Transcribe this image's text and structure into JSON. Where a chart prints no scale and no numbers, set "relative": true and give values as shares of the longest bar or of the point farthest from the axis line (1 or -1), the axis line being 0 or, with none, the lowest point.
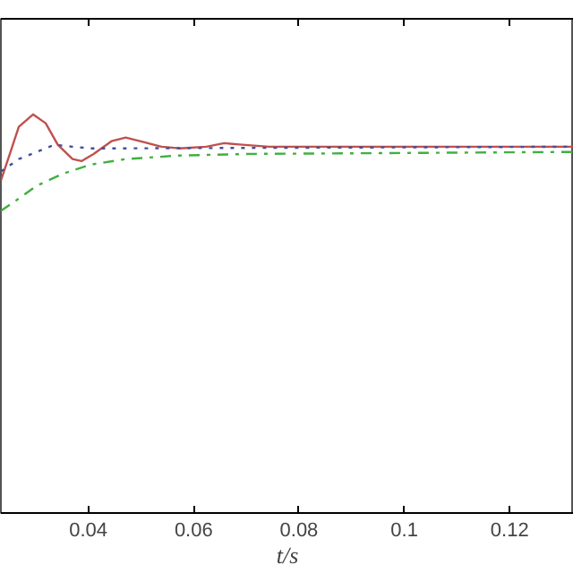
{
  "chart_data": {
    "type": "line",
    "relative": true,
    "xlabel": "t/s",
    "xlim": [
      0.0234,
      0.1322
    ],
    "xticks": [
      0.04,
      0.06,
      0.08,
      {
        "value": 0.1,
        "label": "0.1"
      },
      0.12
    ],
    "grid": false,
    "series": [
      {
        "color": "#c0504d",
        "line_style": "solid",
        "x": [
          0.0234,
          0.0251,
          0.0268,
          0.0295,
          0.0319,
          0.0342,
          0.037,
          0.0387,
          0.041,
          0.0444,
          0.0471,
          0.0498,
          0.0539,
          0.0573,
          0.0624,
          0.0658,
          0.0692,
          0.0743,
          0.1322
        ],
        "values": [
          0.834,
          0.901,
          0.969,
          1.0,
          0.978,
          0.924,
          0.888,
          0.883,
          0.901,
          0.933,
          0.942,
          0.933,
          0.919,
          0.915,
          0.919,
          0.928,
          0.924,
          0.919,
          0.919
        ]
      },
      {
        "color": "#4050a0",
        "line_style": "dotted",
        "x": [
          0.0234,
          0.0268,
          0.0302,
          0.0336,
          0.037,
          0.0404,
          0.0471,
          0.1322
        ],
        "values": [
          0.857,
          0.888,
          0.906,
          0.924,
          0.919,
          0.915,
          0.915,
          0.919
        ]
      },
      {
        "color": "#40b040",
        "line_style": "dashdot",
        "x": [
          0.0234,
          0.0268,
          0.0302,
          0.0353,
          0.0404,
          0.0471,
          0.0573,
          0.0709,
          0.1322
        ],
        "values": [
          0.758,
          0.789,
          0.821,
          0.852,
          0.874,
          0.888,
          0.897,
          0.901,
          0.906
        ]
      }
    ]
  }
}
